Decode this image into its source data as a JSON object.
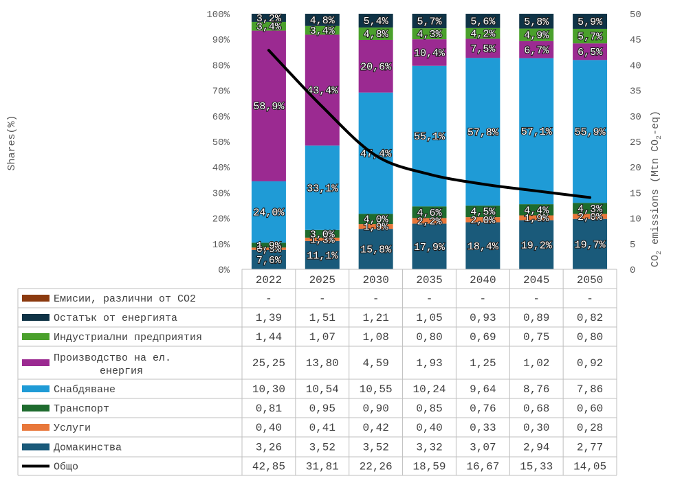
{
  "chart_data": {
    "type": "bar",
    "subtype": "stacked-percent with secondary-axis line and data table",
    "categories": [
      "2022",
      "2025",
      "2030",
      "2035",
      "2040",
      "2045",
      "2050"
    ],
    "y_left": {
      "label": "Shares(%)",
      "ticks": [
        "0%",
        "10%",
        "20%",
        "30%",
        "40%",
        "50%",
        "60%",
        "70%",
        "80%",
        "90%",
        "100%"
      ],
      "range": [
        0,
        100
      ]
    },
    "y_right": {
      "label_pre": "CO",
      "label_sub": "2",
      "label_mid": " emissions (Mtn CO",
      "label_sub2": "2",
      "label_post": "-eq)",
      "ticks": [
        "0",
        "5",
        "10",
        "15",
        "20",
        "25",
        "30",
        "35",
        "40",
        "45",
        "50"
      ],
      "range": [
        0,
        50
      ]
    },
    "share_series": [
      {
        "name": "Домакинства",
        "color": "#1a5a7a",
        "labels": [
          "7,6%",
          "11,1%",
          "15,8%",
          "17,9%",
          "18,4%",
          "19,2%",
          "19,7%"
        ]
      },
      {
        "name": "Услуги",
        "color": "#e8773a",
        "labels": [
          "0,9%",
          "1,3%",
          "1,9%",
          "2,2%",
          "2,0%",
          "1,9%",
          "2,0%"
        ]
      },
      {
        "name": "Транспорт",
        "color": "#1e6b2e",
        "labels": [
          "1,9%",
          "3,0%",
          "4,0%",
          "4,6%",
          "4,5%",
          "4,4%",
          "4,3%"
        ]
      },
      {
        "name": "Снабдяване",
        "color": "#1f9bd6",
        "labels": [
          "24,0%",
          "33,1%",
          "47,4%",
          "55,1%",
          "57,8%",
          "57,1%",
          "55,9%"
        ]
      },
      {
        "name": "Производство на ел. енергия",
        "color": "#9b2a91",
        "labels": [
          "58,9%",
          "43,4%",
          "20,6%",
          "10,4%",
          "7,5%",
          "6,7%",
          "6,5%"
        ]
      },
      {
        "name": "Индустриални предприятия",
        "color": "#4aa02c",
        "labels": [
          "3,4%",
          "3,4%",
          "4,8%",
          "4,3%",
          "4,2%",
          "4,9%",
          "5,7%"
        ]
      },
      {
        "name": "Остатък от енергията",
        "color": "#0f3346",
        "labels": [
          "3,2%",
          "4,8%",
          "5,4%",
          "5,7%",
          "5,6%",
          "5,8%",
          "5,9%"
        ]
      }
    ],
    "line_series": {
      "name": "Общо",
      "color": "#000000",
      "values": [
        42.85,
        31.81,
        22.26,
        18.59,
        16.67,
        15.33,
        14.05
      ]
    },
    "table": {
      "rows": [
        {
          "name": "Емисии, различни от CO2",
          "color": "#8b3a0f",
          "marker": "rect",
          "values": [
            "-",
            "-",
            "-",
            "-",
            "-",
            "-",
            "-"
          ]
        },
        {
          "name": "Остатък от енергията",
          "color": "#0f3346",
          "marker": "rect",
          "values": [
            "1,39",
            "1,51",
            "1,21",
            "1,05",
            "0,93",
            "0,89",
            "0,82"
          ]
        },
        {
          "name": "Индустриални предприятия",
          "color": "#4aa02c",
          "marker": "rect",
          "values": [
            "1,44",
            "1,07",
            "1,08",
            "0,80",
            "0,69",
            "0,75",
            "0,80"
          ]
        },
        {
          "name_line1": "Производство на ел.",
          "name_line2": "енергия",
          "color": "#9b2a91",
          "marker": "rect",
          "values": [
            "25,25",
            "13,80",
            "4,59",
            "1,93",
            "1,25",
            "1,02",
            "0,92"
          ]
        },
        {
          "name": "Снабдяване",
          "color": "#1f9bd6",
          "marker": "rect",
          "values": [
            "10,30",
            "10,54",
            "10,55",
            "10,24",
            "9,64",
            "8,76",
            "7,86"
          ]
        },
        {
          "name": "Транспорт",
          "color": "#1e6b2e",
          "marker": "rect",
          "values": [
            "0,81",
            "0,95",
            "0,90",
            "0,85",
            "0,76",
            "0,68",
            "0,60"
          ]
        },
        {
          "name": "Услуги",
          "color": "#e8773a",
          "marker": "rect",
          "values": [
            "0,40",
            "0,41",
            "0,42",
            "0,40",
            "0,33",
            "0,30",
            "0,28"
          ]
        },
        {
          "name": "Домакинства",
          "color": "#1a5a7a",
          "marker": "rect",
          "values": [
            "3,26",
            "3,52",
            "3,52",
            "3,32",
            "3,07",
            "2,94",
            "2,77"
          ]
        },
        {
          "name": "Общо",
          "color": "#000000",
          "marker": "line",
          "values": [
            "42,85",
            "31,81",
            "22,26",
            "18,59",
            "16,67",
            "15,33",
            "14,05"
          ]
        }
      ]
    },
    "grid": false,
    "legend": "data table below chart"
  }
}
